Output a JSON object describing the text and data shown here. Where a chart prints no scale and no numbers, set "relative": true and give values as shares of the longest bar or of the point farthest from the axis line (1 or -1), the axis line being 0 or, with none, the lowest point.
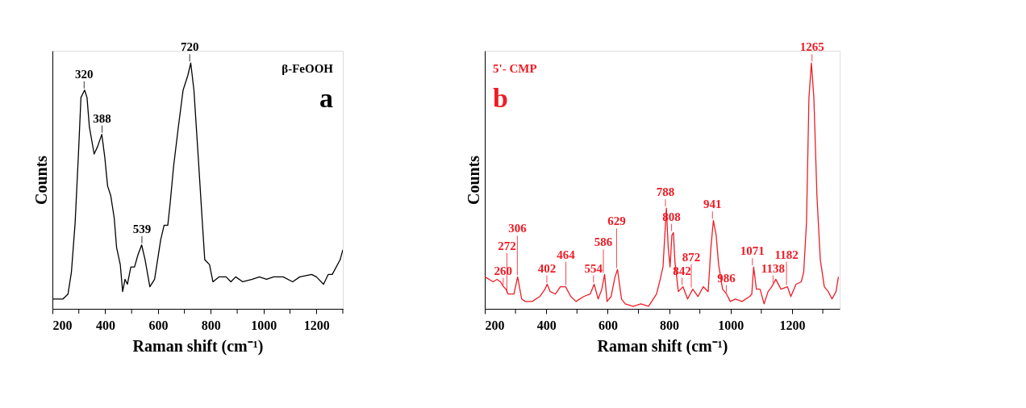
{
  "chart_data": [
    {
      "type": "line",
      "relative": true,
      "xlabel": "Raman shift (cm⁻¹)",
      "ylabel": "Counts",
      "tick_labels": "x",
      "xlim": [
        200,
        1300
      ],
      "xticks": [
        200,
        {
          "value": 300,
          "label": null
        },
        400,
        {
          "value": 500,
          "label": null
        },
        600,
        {
          "value": 700,
          "label": null
        },
        800,
        {
          "value": 900,
          "label": null
        },
        1000,
        {
          "value": 1100,
          "label": null
        },
        1200,
        {
          "value": 1300,
          "label": null
        }
      ],
      "series": [
        {
          "color": "#000000",
          "x": [
            200,
            240,
            259,
            272,
            286,
            299,
            308,
            322,
            331,
            340,
            358,
            371,
            387,
            398,
            409,
            421,
            434,
            443,
            457,
            466,
            475,
            484,
            497,
            511,
            524,
            538,
            551,
            569,
            587,
            610,
            623,
            637,
            646,
            659,
            677,
            695,
            713,
            724,
            736,
            754,
            768,
            777,
            795,
            808,
            831,
            858,
            876,
            894,
            921,
            957,
            984,
            1011,
            1038,
            1074,
            1110,
            1137,
            1182,
            1200,
            1227,
            1245,
            1260,
            1290,
            1300
          ],
          "values": [
            0.04,
            0.04,
            0.06,
            0.15,
            0.35,
            0.64,
            0.86,
            0.89,
            0.86,
            0.74,
            0.63,
            0.66,
            0.71,
            0.62,
            0.5,
            0.46,
            0.37,
            0.25,
            0.18,
            0.07,
            0.12,
            0.1,
            0.17,
            0.17,
            0.22,
            0.26,
            0.2,
            0.09,
            0.12,
            0.28,
            0.34,
            0.34,
            0.43,
            0.58,
            0.74,
            0.89,
            0.95,
            1.0,
            0.89,
            0.59,
            0.35,
            0.2,
            0.18,
            0.11,
            0.13,
            0.13,
            0.11,
            0.13,
            0.11,
            0.12,
            0.13,
            0.12,
            0.13,
            0.13,
            0.11,
            0.13,
            0.14,
            0.13,
            0.1,
            0.14,
            0.14,
            0.2,
            0.24
          ]
        }
      ],
      "annotations": [
        "β-FeOOH",
        "a",
        {
          "text": "320",
          "x": 320,
          "y": 0.89
        },
        {
          "text": "388",
          "x": 388,
          "y": 0.71
        },
        {
          "text": "539",
          "x": 539,
          "y": 0.26
        },
        {
          "text": "720",
          "x": 720,
          "y": 1.0
        }
      ]
    },
    {
      "type": "line",
      "relative": true,
      "xlabel": "Raman shift (cm⁻¹)",
      "ylabel": "Counts",
      "tick_labels": "x",
      "xlim": [
        200,
        1355
      ],
      "xticks": [
        200,
        {
          "value": 300,
          "label": null
        },
        400,
        {
          "value": 500,
          "label": null
        },
        600,
        {
          "value": 700,
          "label": null
        },
        800,
        {
          "value": 900,
          "label": null
        },
        1000,
        {
          "value": 1100,
          "label": null
        },
        1200,
        {
          "value": 1300,
          "label": null
        }
      ],
      "series": [
        {
          "color": "#ee1c25",
          "x": [
            200,
            214,
            227,
            240,
            251,
            261,
            269,
            276,
            282,
            295,
            307,
            320,
            332,
            354,
            379,
            396,
            403,
            413,
            430,
            446,
            463,
            480,
            497,
            522,
            543,
            556,
            569,
            581,
            590,
            598,
            611,
            624,
            632,
            645,
            657,
            683,
            708,
            733,
            759,
            771,
            780,
            786,
            791,
            797,
            803,
            809,
            814,
            819,
            830,
            845,
            860,
            877,
            894,
            911,
            927,
            936,
            944,
            953,
            961,
            974,
            987,
            999,
            1016,
            1037,
            1062,
            1069,
            1075,
            1084,
            1096,
            1109,
            1122,
            1134,
            1147,
            1164,
            1185,
            1196,
            1213,
            1230,
            1238,
            1247,
            1255,
            1263,
            1271,
            1281,
            1292,
            1305,
            1318,
            1330,
            1343,
            1351
          ],
          "values": [
            0.13,
            0.12,
            0.11,
            0.12,
            0.11,
            0.09,
            0.08,
            0.06,
            0.06,
            0.06,
            0.13,
            0.04,
            0.03,
            0.03,
            0.05,
            0.08,
            0.1,
            0.07,
            0.06,
            0.09,
            0.09,
            0.05,
            0.03,
            0.05,
            0.06,
            0.1,
            0.04,
            0.08,
            0.14,
            0.03,
            0.05,
            0.13,
            0.16,
            0.04,
            0.02,
            0.01,
            0.02,
            0.01,
            0.06,
            0.12,
            0.17,
            0.3,
            0.41,
            0.25,
            0.17,
            0.3,
            0.31,
            0.19,
            0.07,
            0.09,
            0.04,
            0.08,
            0.05,
            0.09,
            0.07,
            0.25,
            0.36,
            0.3,
            0.18,
            0.08,
            0.06,
            0.03,
            0.04,
            0.03,
            0.05,
            0.06,
            0.17,
            0.08,
            0.08,
            0.02,
            0.07,
            0.09,
            0.12,
            0.08,
            0.09,
            0.05,
            0.1,
            0.11,
            0.15,
            0.35,
            0.86,
            1.0,
            0.86,
            0.46,
            0.2,
            0.09,
            0.07,
            0.04,
            0.07,
            0.13
          ]
        }
      ],
      "annotations": [
        "5'- CMP",
        "b",
        {
          "text": "260",
          "x": 260,
          "y": 0.09
        },
        {
          "text": "272",
          "x": 272,
          "y": 0.06
        },
        {
          "text": "306",
          "x": 306,
          "y": 0.13
        },
        {
          "text": "402",
          "x": 402,
          "y": 0.1
        },
        {
          "text": "464",
          "x": 464,
          "y": 0.09
        },
        {
          "text": "554",
          "x": 554,
          "y": 0.1
        },
        {
          "text": "586",
          "x": 586,
          "y": 0.14
        },
        {
          "text": "629",
          "x": 629,
          "y": 0.16
        },
        {
          "text": "788",
          "x": 788,
          "y": 0.41
        },
        {
          "text": "808",
          "x": 808,
          "y": 0.31
        },
        {
          "text": "842",
          "x": 842,
          "y": 0.09
        },
        {
          "text": "872",
          "x": 872,
          "y": 0.08
        },
        {
          "text": "941",
          "x": 941,
          "y": 0.36
        },
        {
          "text": "986",
          "x": 986,
          "y": 0.06
        },
        {
          "text": "1071",
          "x": 1071,
          "y": 0.17
        },
        {
          "text": "1138",
          "x": 1138,
          "y": 0.1
        },
        {
          "text": "1182",
          "x": 1182,
          "y": 0.09
        },
        {
          "text": "1265",
          "x": 1265,
          "y": 1.0
        }
      ]
    }
  ]
}
